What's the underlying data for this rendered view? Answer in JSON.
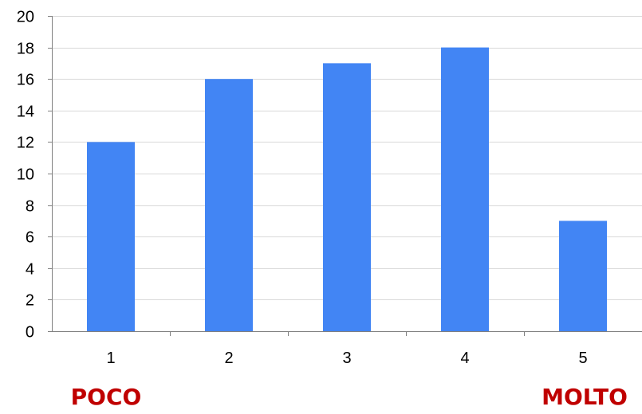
{
  "chart_data": {
    "type": "bar",
    "categories": [
      "1",
      "2",
      "3",
      "4",
      "5"
    ],
    "values": [
      12,
      16,
      17,
      18,
      7
    ],
    "ylim": [
      0,
      20
    ],
    "yticks": [
      0,
      2,
      4,
      6,
      8,
      10,
      12,
      14,
      16,
      18,
      20
    ],
    "grid": true,
    "legend": "none",
    "bar_color": "#4285F4",
    "title": "",
    "xlabel": "",
    "ylabel": ""
  },
  "annotations": {
    "left": "POCO",
    "right": "MOLTO",
    "color": "#C00000"
  }
}
